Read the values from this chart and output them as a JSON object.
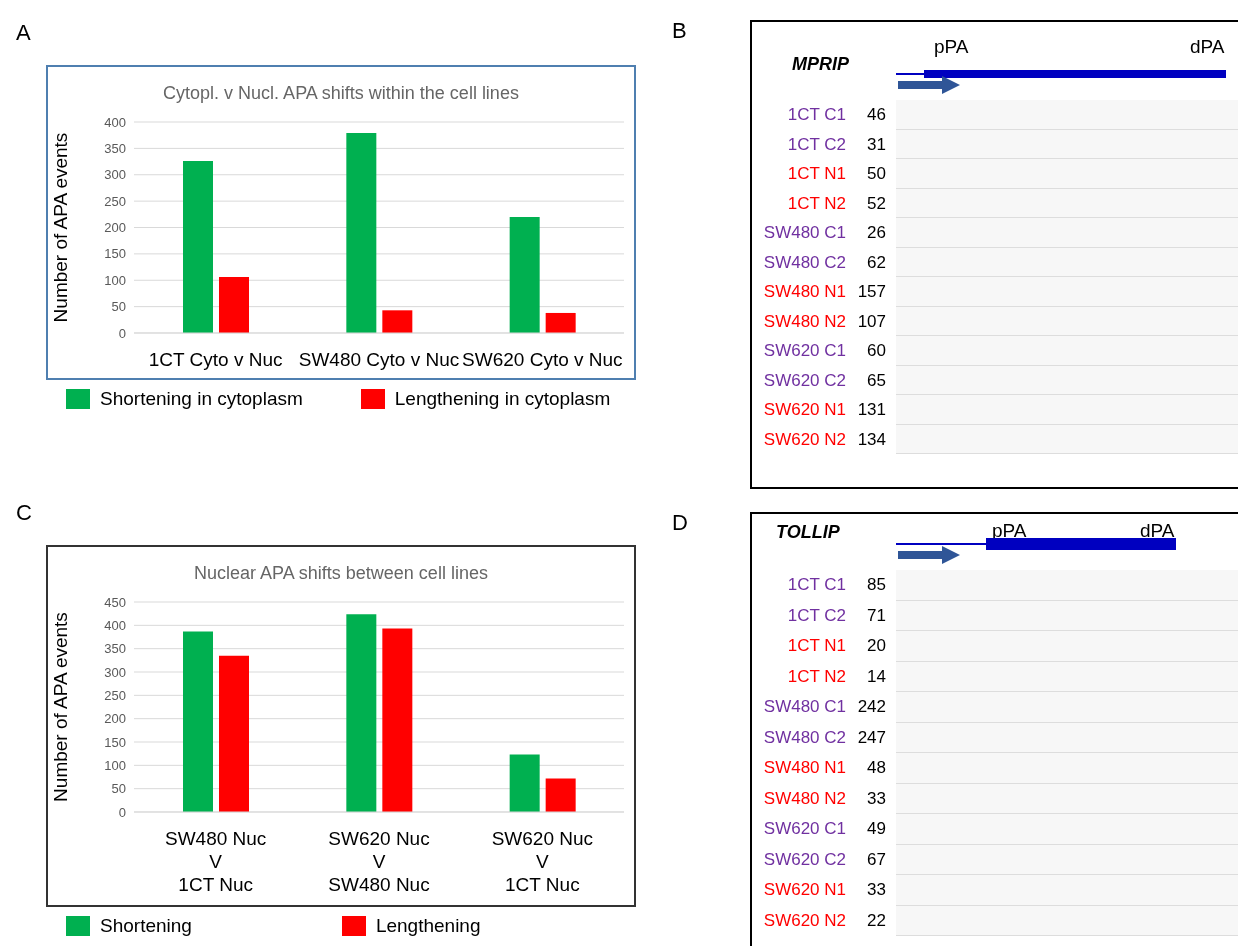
{
  "chart_data": [
    {
      "type": "bar",
      "title": "Cytopl. v Nucl. APA shifts within the cell lines",
      "ylabel": "Number of APA events",
      "annotations": [
        "A"
      ],
      "categories": [
        "1CT Cyto v Nuc",
        "SW480 Cyto v Nuc",
        "SW620 Cyto v Nuc"
      ],
      "series": [
        {
          "name": "Shortening in cytoplasm",
          "color": "#00b050",
          "values": [
            326,
            379,
            220
          ]
        },
        {
          "name": "Lengthening in cytoplasm",
          "color": "#ff0000",
          "values": [
            106,
            43,
            38
          ]
        }
      ],
      "ylim": [
        0,
        400
      ],
      "yticks": [
        0,
        50,
        100,
        150,
        200,
        250,
        300,
        350,
        400
      ],
      "grid": "y",
      "legend": "bottom"
    },
    {
      "type": "other",
      "title": "MPRIP",
      "annotations": [
        "B",
        "pPA",
        "dPA"
      ],
      "categories": [
        "1CT C1",
        "1CT C2",
        "1CT N1",
        "1CT N2",
        "SW480 C1",
        "SW480 C2",
        "SW480 N1",
        "SW480 N2",
        "SW620 C1",
        "SW620 C2",
        "SW620 N1",
        "SW620 N2"
      ],
      "values": [
        46,
        31,
        50,
        52,
        26,
        62,
        157,
        107,
        60,
        65,
        131,
        134
      ],
      "colors": [
        "#7030a0",
        "#7030a0",
        "#ff0000",
        "#ff0000",
        "#7030a0",
        "#7030a0",
        "#ff0000",
        "#ff0000",
        "#7030a0",
        "#7030a0",
        "#ff0000",
        "#ff0000"
      ],
      "data_labels": true
    },
    {
      "type": "bar",
      "title": "Nuclear APA shifts between cell lines",
      "ylabel": "Number of APA events",
      "annotations": [
        "C"
      ],
      "categories": [
        "SW480 Nuc\nV\n1CT Nuc",
        "SW620 Nuc\nV\nSW480 Nuc",
        "SW620 Nuc\nV\n1CT Nuc"
      ],
      "series": [
        {
          "name": "Shortening",
          "color": "#00b050",
          "values": [
            387,
            424,
            123
          ]
        },
        {
          "name": "Lengthening",
          "color": "#ff0000",
          "values": [
            335,
            393,
            72
          ]
        }
      ],
      "ylim": [
        0,
        450
      ],
      "yticks": [
        0,
        50,
        100,
        150,
        200,
        250,
        300,
        350,
        400,
        450
      ],
      "grid": "y",
      "legend": "bottom"
    },
    {
      "type": "other",
      "title": "TOLLIP",
      "annotations": [
        "D",
        "pPA",
        "dPA"
      ],
      "categories": [
        "1CT C1",
        "1CT C2",
        "1CT N1",
        "1CT N2",
        "SW480 C1",
        "SW480 C2",
        "SW480 N1",
        "SW480 N2",
        "SW620 C1",
        "SW620 C2",
        "SW620 N1",
        "SW620 N2"
      ],
      "values": [
        85,
        71,
        20,
        14,
        242,
        247,
        48,
        33,
        49,
        67,
        33,
        22
      ],
      "colors": [
        "#7030a0",
        "#7030a0",
        "#ff0000",
        "#ff0000",
        "#7030a0",
        "#7030a0",
        "#ff0000",
        "#ff0000",
        "#7030a0",
        "#7030a0",
        "#ff0000",
        "#ff0000"
      ],
      "data_labels": true
    }
  ]
}
